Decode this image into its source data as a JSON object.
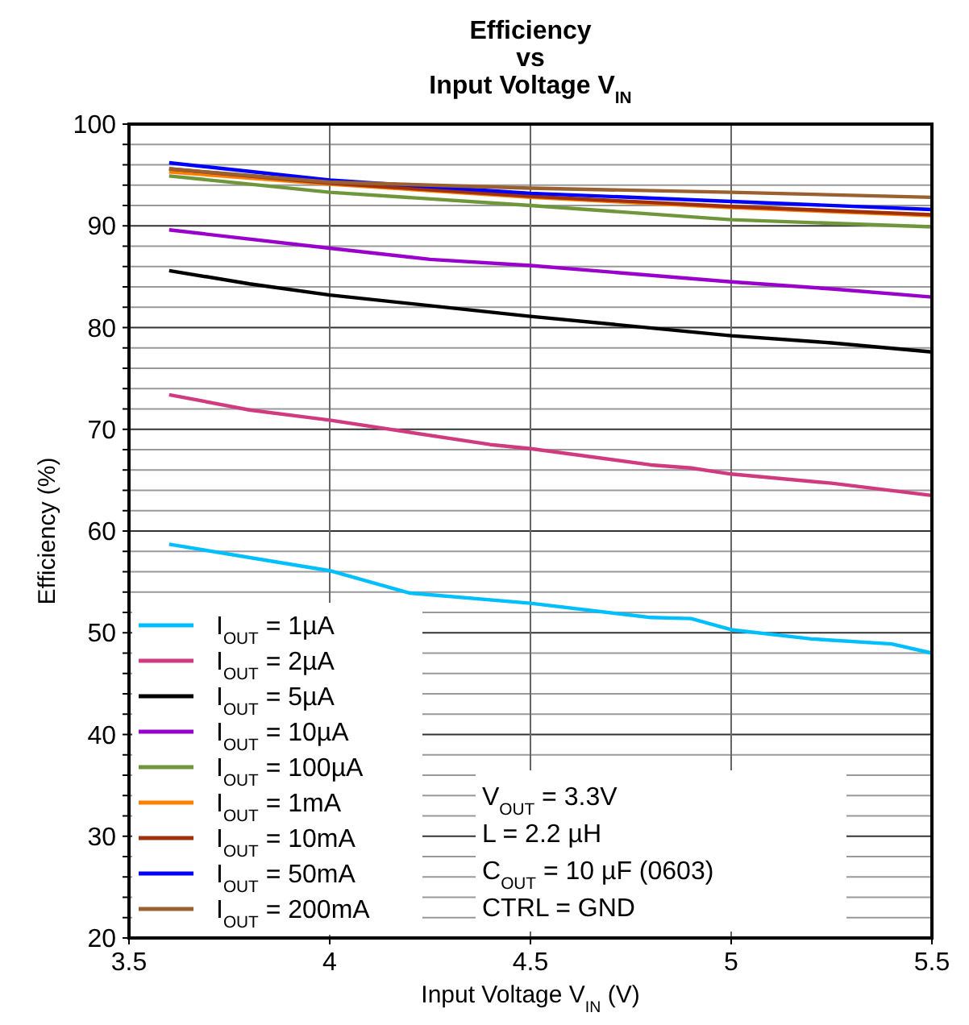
{
  "chart_data": {
    "type": "line",
    "title": "Efficiency\nvs\nInput Voltage V$_{IN}$",
    "xlabel": "Input Voltage V$_{IN}$ (V)",
    "ylabel": "Efficiency (%)",
    "xlim": [
      3.5,
      5.5
    ],
    "xticks": [
      3.5,
      4,
      4.5,
      5,
      5.5
    ],
    "ylim": [
      20,
      100
    ],
    "yticks": [
      20,
      {
        "value": 22,
        "label": null
      },
      {
        "value": 24,
        "label": null
      },
      {
        "value": 26,
        "label": null
      },
      {
        "value": 28,
        "label": null
      },
      30,
      {
        "value": 32,
        "label": null
      },
      {
        "value": 34,
        "label": null
      },
      {
        "value": 36,
        "label": null
      },
      {
        "value": 38,
        "label": null
      },
      40,
      {
        "value": 42,
        "label": null
      },
      {
        "value": 44,
        "label": null
      },
      {
        "value": 46,
        "label": null
      },
      {
        "value": 48,
        "label": null
      },
      50,
      {
        "value": 52,
        "label": null
      },
      {
        "value": 54,
        "label": null
      },
      {
        "value": 56,
        "label": null
      },
      {
        "value": 58,
        "label": null
      },
      60,
      {
        "value": 62,
        "label": null
      },
      {
        "value": 64,
        "label": null
      },
      {
        "value": 66,
        "label": null
      },
      {
        "value": 68,
        "label": null
      },
      70,
      {
        "value": 72,
        "label": null
      },
      {
        "value": 74,
        "label": null
      },
      {
        "value": 76,
        "label": null
      },
      {
        "value": 78,
        "label": null
      },
      80,
      {
        "value": 82,
        "label": null
      },
      {
        "value": 84,
        "label": null
      },
      {
        "value": 86,
        "label": null
      },
      {
        "value": 88,
        "label": null
      },
      90,
      {
        "value": 92,
        "label": null
      },
      {
        "value": 94,
        "label": null
      },
      {
        "value": 96,
        "label": null
      },
      {
        "value": 98,
        "label": null
      },
      100
    ],
    "grid": true,
    "legend": "bottom left",
    "marker": "none",
    "line_style": "solid",
    "annotations": [
      "V$_{OUT}$ = 3.3V",
      "L = 2.2 µH",
      "C$_{OUT}$ = 10 µF (0603)",
      "CTRL = GND"
    ],
    "series": [
      {
        "name": "I$_{OUT}$ = 1µA",
        "color": "#00bfff",
        "x": [
          3.6,
          4.0,
          4.2,
          4.5,
          4.8,
          4.9,
          5.0,
          5.2,
          5.4,
          5.5
        ],
        "values": [
          58.7,
          56.1,
          53.9,
          52.9,
          51.5,
          51.4,
          50.3,
          49.4,
          48.9,
          48.0
        ]
      },
      {
        "name": "I$_{OUT}$ = 2µA",
        "color": "#d03a7f",
        "x": [
          3.6,
          3.8,
          4.0,
          4.4,
          4.5,
          4.8,
          4.9,
          5.0,
          5.25,
          5.5
        ],
        "values": [
          73.4,
          71.9,
          70.9,
          68.5,
          68.1,
          66.5,
          66.2,
          65.6,
          64.7,
          63.5
        ]
      },
      {
        "name": "I$_{OUT}$ = 5µA",
        "color": "#000000",
        "x": [
          3.6,
          3.8,
          4.0,
          4.5,
          5.0,
          5.25,
          5.5
        ],
        "values": [
          85.6,
          84.3,
          83.2,
          81.1,
          79.2,
          78.5,
          77.6
        ]
      },
      {
        "name": "I$_{OUT}$ = 10µA",
        "color": "#9900cc",
        "x": [
          3.6,
          4.0,
          4.25,
          4.5,
          5.0,
          5.25,
          5.5
        ],
        "values": [
          89.6,
          87.8,
          86.7,
          86.1,
          84.5,
          83.8,
          83.0
        ]
      },
      {
        "name": "I$_{OUT}$ = 100µA",
        "color": "#70963c",
        "x": [
          3.6,
          4.0,
          4.5,
          5.0,
          5.5
        ],
        "values": [
          94.9,
          93.3,
          92.0,
          90.6,
          89.9
        ]
      },
      {
        "name": "I$_{OUT}$ = 1mA",
        "color": "#ff8000",
        "x": [
          3.6,
          4.0,
          4.5,
          5.0,
          5.5
        ],
        "values": [
          95.3,
          94.1,
          92.8,
          91.8,
          91.0
        ]
      },
      {
        "name": "I$_{OUT}$ = 10mA",
        "color": "#a0300c",
        "x": [
          3.6,
          4.0,
          4.5,
          5.0,
          5.5
        ],
        "values": [
          95.6,
          94.2,
          92.9,
          91.9,
          91.1
        ]
      },
      {
        "name": "I$_{OUT}$ = 50mA",
        "color": "#0000ff",
        "x": [
          3.6,
          4.0,
          4.5,
          5.0,
          5.5
        ],
        "values": [
          96.2,
          94.5,
          93.2,
          92.4,
          91.6
        ]
      },
      {
        "name": "I$_{OUT}$ = 200mA",
        "color": "#9a6030",
        "x": [
          3.6,
          4.0,
          4.5,
          5.0,
          5.5
        ],
        "values": [
          95.6,
          94.3,
          93.7,
          93.3,
          92.8
        ]
      }
    ]
  }
}
